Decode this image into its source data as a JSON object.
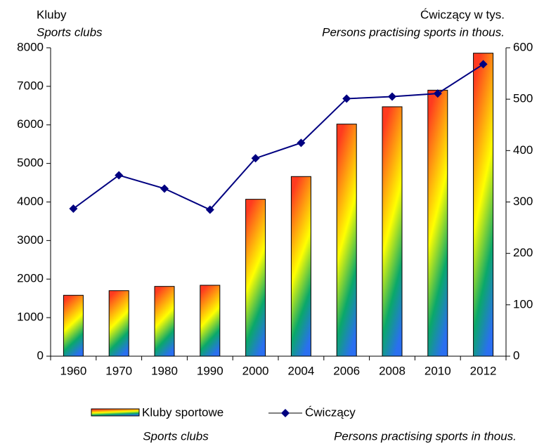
{
  "chart_data": {
    "type": "bar",
    "y_title": "Kluby",
    "y_title_en": "Sports clubs",
    "y2_title": "Ćwiczący w tys.",
    "y2_title_en": "Persons practising sports in thous.",
    "categories": [
      "1960",
      "1970",
      "1980",
      "1990",
      "2000",
      "2004",
      "2006",
      "2008",
      "2010",
      "2012"
    ],
    "series": [
      {
        "name": "Kluby sportowe",
        "name_en": "Sports clubs",
        "type": "bar",
        "colors": [
          "#ff3b1f",
          "#ffff00",
          "#0aa86a",
          "#2a6ff0"
        ],
        "values": [
          1580,
          1700,
          1810,
          1840,
          4070,
          4660,
          6020,
          6470,
          6900,
          7860
        ]
      },
      {
        "name": "Ćwiczący",
        "name_en": "Persons practising sports in thous.",
        "type": "line",
        "axis": "y2",
        "color": "#000080",
        "values": [
          287,
          352,
          326,
          285,
          385,
          415,
          501,
          505,
          511,
          568
        ]
      }
    ],
    "ylim": [
      0,
      8000
    ],
    "yticks": [
      0,
      1000,
      2000,
      3000,
      4000,
      5000,
      6000,
      7000,
      8000
    ],
    "y2lim": [
      0,
      600
    ],
    "y2ticks": [
      0,
      100,
      200,
      300,
      400,
      500,
      600
    ],
    "grid": false
  }
}
